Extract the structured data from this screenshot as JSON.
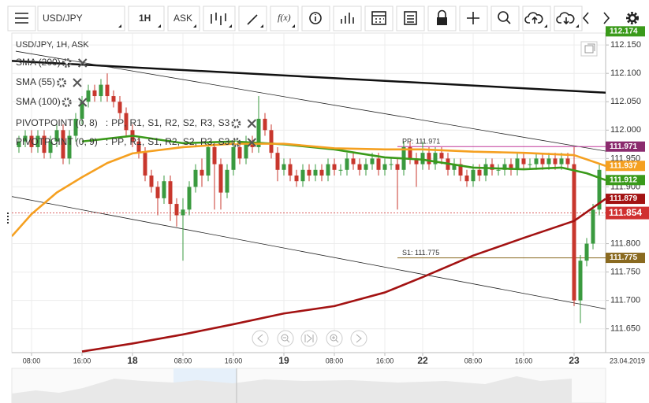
{
  "toolbar": {
    "symbol": "USD/JPY",
    "interval": "1H",
    "price_type": "ASK",
    "function_label": "f(x)"
  },
  "chart_data": {
    "type": "candlestick",
    "title": "USD/JPY, 1H, ASK",
    "up_color": "#3a9a3f",
    "down_color": "#c8372d",
    "xlim": [
      -3.125,
      91
    ],
    "ylim": [
      111.608,
      112.171
    ],
    "yticks": [
      {
        "value": 111.65,
        "label": "111.650"
      },
      {
        "value": 111.7,
        "label": "111.700"
      },
      {
        "value": 111.75,
        "label": "111.750"
      },
      {
        "value": 111.8,
        "label": "111.800"
      },
      {
        "value": 111.85,
        "label": "111.850"
      },
      {
        "value": 111.9,
        "label": "111.900"
      },
      {
        "value": 111.95,
        "label": "111.950"
      },
      {
        "value": 112.0,
        "label": "112.000"
      },
      {
        "value": 112.05,
        "label": "112.050"
      },
      {
        "value": 112.1,
        "label": "112.100"
      },
      {
        "value": 112.15,
        "label": "112.150"
      }
    ],
    "xticks": [
      {
        "value": 0,
        "label": "08:00"
      },
      {
        "value": 8,
        "label": "16:00"
      },
      {
        "value": 16,
        "label": "18"
      },
      {
        "value": 24,
        "label": "08:00"
      },
      {
        "value": 32,
        "label": "16:00"
      },
      {
        "value": 40,
        "label": "19"
      },
      {
        "value": 48,
        "label": "08:00"
      },
      {
        "value": 56,
        "label": "16:00"
      },
      {
        "value": 62,
        "label": "22"
      },
      {
        "value": 70,
        "label": "08:00"
      },
      {
        "value": 78,
        "label": "16:00"
      },
      {
        "value": 86,
        "label": "23"
      }
    ],
    "date_label": "23.04.2019",
    "grid": true,
    "x": [
      -2,
      -1,
      0,
      1,
      2,
      3,
      4,
      5,
      6,
      7,
      8,
      9,
      10,
      11,
      12,
      13,
      14,
      15,
      16,
      17,
      18,
      19,
      20,
      21,
      22,
      23,
      24,
      25,
      26,
      27,
      28,
      29,
      30,
      31,
      32,
      33,
      34,
      35,
      36,
      37,
      38,
      39,
      40,
      41,
      42,
      43,
      44,
      45,
      46,
      47,
      48,
      49,
      50,
      51,
      52,
      53,
      54,
      55,
      56,
      57,
      58,
      59,
      60,
      61,
      62,
      63,
      64,
      65,
      66,
      67,
      68,
      69,
      70,
      71,
      72,
      73,
      74,
      75,
      76,
      77,
      78,
      79,
      80,
      81,
      82,
      83,
      84,
      85,
      86,
      87,
      88,
      89,
      90
    ],
    "candles": [
      [
        111.97,
        111.99,
        111.96,
        111.98
      ],
      [
        111.98,
        112.0,
        111.97,
        111.99
      ],
      [
        111.99,
        112.0,
        111.96,
        111.97
      ],
      [
        111.97,
        112.0,
        111.96,
        111.99
      ],
      [
        111.99,
        112.0,
        111.95,
        111.96
      ],
      [
        111.96,
        111.99,
        111.95,
        111.98
      ],
      [
        111.98,
        112.01,
        111.97,
        112.0
      ],
      [
        112.0,
        112.01,
        111.94,
        111.95
      ],
      [
        111.95,
        112.0,
        111.94,
        111.99
      ],
      [
        111.99,
        112.03,
        111.98,
        112.02
      ],
      [
        112.02,
        112.06,
        112.01,
        112.05
      ],
      [
        112.05,
        112.08,
        112.04,
        112.07
      ],
      [
        112.07,
        112.08,
        112.05,
        112.06
      ],
      [
        112.06,
        112.09,
        112.05,
        112.08
      ],
      [
        112.08,
        112.1,
        112.05,
        112.06
      ],
      [
        112.06,
        112.07,
        112.04,
        112.05
      ],
      [
        112.05,
        112.06,
        112.02,
        112.03
      ],
      [
        112.03,
        112.04,
        111.99,
        112.0
      ],
      [
        112.0,
        112.01,
        111.97,
        111.98
      ],
      [
        111.98,
        111.99,
        111.95,
        111.96
      ],
      [
        111.96,
        111.97,
        111.91,
        111.92
      ],
      [
        111.92,
        111.93,
        111.89,
        111.9
      ],
      [
        111.9,
        111.91,
        111.85,
        111.88
      ],
      [
        111.88,
        111.92,
        111.87,
        111.91
      ],
      [
        111.91,
        111.92,
        111.84,
        111.87
      ],
      [
        111.87,
        111.88,
        111.83,
        111.85
      ],
      [
        111.85,
        111.88,
        111.77,
        111.86
      ],
      [
        111.86,
        111.91,
        111.85,
        111.9
      ],
      [
        111.9,
        111.94,
        111.89,
        111.93
      ],
      [
        111.93,
        111.95,
        111.9,
        111.92
      ],
      [
        111.92,
        111.98,
        111.91,
        111.97
      ],
      [
        111.97,
        111.98,
        111.86,
        111.94
      ],
      [
        111.94,
        111.95,
        111.86,
        111.89
      ],
      [
        111.89,
        111.94,
        111.88,
        111.93
      ],
      [
        111.93,
        111.98,
        111.92,
        111.97
      ],
      [
        111.97,
        111.98,
        111.94,
        111.95
      ],
      [
        111.95,
        111.99,
        111.94,
        111.98
      ],
      [
        111.98,
        111.99,
        111.96,
        111.97
      ],
      [
        111.97,
        112.06,
        111.96,
        112.02
      ],
      [
        112.02,
        112.03,
        111.99,
        112.0
      ],
      [
        112.0,
        112.01,
        111.95,
        111.96
      ],
      [
        111.96,
        111.97,
        111.91,
        111.93
      ],
      [
        111.93,
        111.95,
        111.92,
        111.94
      ],
      [
        111.94,
        111.95,
        111.91,
        111.92
      ],
      [
        111.92,
        111.93,
        111.9,
        111.91
      ],
      [
        111.91,
        111.94,
        111.9,
        111.93
      ],
      [
        111.93,
        111.94,
        111.91,
        111.92
      ],
      [
        111.92,
        111.94,
        111.91,
        111.93
      ],
      [
        111.93,
        111.94,
        111.91,
        111.92
      ],
      [
        111.92,
        111.95,
        111.91,
        111.94
      ],
      [
        111.94,
        111.95,
        111.92,
        111.93
      ],
      [
        111.93,
        111.94,
        111.92,
        111.93
      ],
      [
        111.93,
        111.96,
        111.92,
        111.95
      ],
      [
        111.95,
        111.96,
        111.93,
        111.94
      ],
      [
        111.94,
        111.95,
        111.92,
        111.93
      ],
      [
        111.93,
        111.95,
        111.92,
        111.94
      ],
      [
        111.94,
        111.96,
        111.93,
        111.95
      ],
      [
        111.95,
        111.96,
        111.92,
        111.93
      ],
      [
        111.93,
        111.95,
        111.92,
        111.94
      ],
      [
        111.94,
        111.95,
        111.93,
        111.94
      ],
      [
        111.94,
        111.95,
        111.86,
        111.93
      ],
      [
        111.93,
        111.98,
        111.92,
        111.97
      ],
      [
        111.97,
        111.98,
        111.94,
        111.95
      ],
      [
        111.95,
        111.96,
        111.9,
        111.94
      ],
      [
        111.94,
        111.98,
        111.93,
        111.96
      ],
      [
        111.96,
        111.97,
        111.93,
        111.94
      ],
      [
        111.94,
        111.97,
        111.93,
        111.96
      ],
      [
        111.96,
        111.97,
        111.94,
        111.95
      ],
      [
        111.95,
        111.96,
        111.92,
        111.93
      ],
      [
        111.93,
        111.95,
        111.92,
        111.94
      ],
      [
        111.94,
        111.95,
        111.91,
        111.92
      ],
      [
        111.92,
        111.93,
        111.9,
        111.91
      ],
      [
        111.91,
        111.94,
        111.9,
        111.93
      ],
      [
        111.93,
        111.94,
        111.91,
        111.92
      ],
      [
        111.92,
        111.95,
        111.91,
        111.94
      ],
      [
        111.94,
        111.95,
        111.92,
        111.93
      ],
      [
        111.93,
        111.94,
        111.92,
        111.93
      ],
      [
        111.93,
        111.95,
        111.92,
        111.94
      ],
      [
        111.94,
        111.95,
        111.92,
        111.93
      ],
      [
        111.93,
        111.96,
        111.92,
        111.95
      ],
      [
        111.95,
        111.96,
        111.93,
        111.94
      ],
      [
        111.94,
        111.95,
        111.93,
        111.94
      ],
      [
        111.94,
        111.96,
        111.93,
        111.95
      ],
      [
        111.95,
        111.96,
        111.93,
        111.94
      ],
      [
        111.94,
        111.96,
        111.93,
        111.95
      ],
      [
        111.95,
        111.96,
        111.93,
        111.94
      ],
      [
        111.94,
        111.96,
        111.93,
        111.95
      ],
      [
        111.95,
        111.96,
        111.93,
        111.94
      ],
      [
        111.94,
        111.97,
        111.69,
        111.7
      ],
      [
        111.7,
        111.78,
        111.66,
        111.77
      ],
      [
        111.77,
        111.81,
        111.76,
        111.8
      ],
      [
        111.8,
        111.87,
        111.79,
        111.86
      ],
      [
        111.86,
        111.94,
        111.85,
        111.93
      ]
    ],
    "series": [
      {
        "name": "SMA (200)",
        "color": "#a31212",
        "x": [
          8,
          16,
          24,
          32,
          40,
          48,
          56,
          62,
          70,
          78,
          86,
          91
        ],
        "values": [
          111.61,
          111.624,
          111.64,
          111.658,
          111.677,
          111.69,
          111.714,
          111.741,
          111.779,
          111.81,
          111.84,
          111.879
        ]
      },
      {
        "name": "SMA (55)",
        "color": "#3a9a1a",
        "x": [
          8,
          16,
          24,
          32,
          40,
          48,
          56,
          62,
          70,
          78,
          84,
          88,
          91
        ],
        "values": [
          111.98,
          111.99,
          111.977,
          111.98,
          111.975,
          111.966,
          111.952,
          111.948,
          111.934,
          111.931,
          111.934,
          111.924,
          111.912
        ]
      },
      {
        "name": "SMA (100)",
        "color": "#f5a020",
        "x": [
          -3.125,
          -2,
          0,
          4,
          8,
          12,
          16,
          24,
          32,
          40,
          48,
          56,
          62,
          70,
          78,
          86,
          91
        ],
        "values": [
          111.813,
          111.827,
          111.852,
          111.89,
          111.917,
          111.942,
          111.959,
          111.97,
          111.976,
          111.976,
          111.968,
          111.966,
          111.966,
          111.962,
          111.96,
          111.956,
          111.937
        ]
      }
    ],
    "trendlines": [
      {
        "color": "#111111",
        "stroke_width": 2.5,
        "x": [
          -3.125,
          91
        ],
        "values": [
          112.122,
          112.066
        ]
      },
      {
        "color": "#222222",
        "stroke_width": 0.8,
        "x": [
          -2.5,
          91
        ],
        "values": [
          112.139,
          111.963
        ]
      },
      {
        "color": "#222222",
        "stroke_width": 0.8,
        "x": [
          -3.125,
          91
        ],
        "values": [
          111.883,
          111.685
        ]
      }
    ],
    "pivot_indicators": [
      "PIVOTPOINT (0, 8)",
      "PIVOTPOINT (0, 9)"
    ],
    "pivot_prefix": ":",
    "pivot_separator": ",",
    "pivot_levels": [
      {
        "name": "PP",
        "color": "#c0389a"
      },
      {
        "name": "R1",
        "color": "#2a9a6a"
      },
      {
        "name": "S1",
        "color": "#8a6a20"
      },
      {
        "name": "R2",
        "color": "#2a5aa0"
      },
      {
        "name": "S2",
        "color": "#2a4a80"
      },
      {
        "name": "R3",
        "color": "#b08020"
      },
      {
        "name": "S3",
        "color": "#8a30a0"
      }
    ],
    "pivot_lines": [
      {
        "label": "PP: 111.971",
        "value": 111.971,
        "color": "#c0389a",
        "x_start": 58
      },
      {
        "label": "S1: 111.775",
        "value": 111.775,
        "color": "#8a6a20",
        "x_start": 58
      }
    ],
    "current_price": {
      "value": 111.854,
      "label": "111.854",
      "color": "#d03030"
    },
    "price_labels": [
      {
        "value": 112.174,
        "label": "112.174",
        "color": "#3a9a1a"
      },
      {
        "value": 111.971,
        "label": "111.971",
        "color": "#8b2b6e"
      },
      {
        "value": 111.937,
        "label": "111.937",
        "color": "#f5a020"
      },
      {
        "value": 111.912,
        "label": "111.912",
        "color": "#3a9a1a"
      },
      {
        "value": 111.879,
        "label": "111.879",
        "color": "#a31212"
      },
      {
        "value": 111.775,
        "label": "111.775",
        "color": "#8a6a20"
      }
    ]
  }
}
